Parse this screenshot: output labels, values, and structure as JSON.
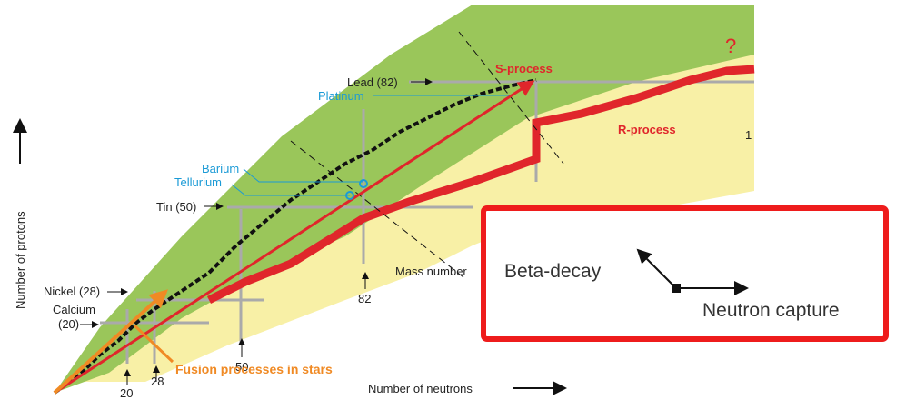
{
  "chart_title_none": null,
  "labels": {
    "lead": "Lead (82)",
    "platinum": "Platinum",
    "s_process": "S-process",
    "question": "?",
    "r_process": "R-process",
    "one": "1",
    "barium": "Barium",
    "tellurium": "Tellurium",
    "tin": "Tin (50)",
    "mass_number": "Mass number",
    "n82": "82",
    "nickel": "Nickel (28)",
    "calcium": "Calcium",
    "calcium_number": "(20)",
    "n50": "50",
    "n28": "28",
    "n20": "20",
    "fusion": "Fusion processes in stars",
    "x_axis": "Number of neutrons",
    "y_axis": "Number of protons"
  },
  "legend": {
    "beta_decay": "Beta-decay",
    "neutron_capture": "Neutron capture"
  }
}
